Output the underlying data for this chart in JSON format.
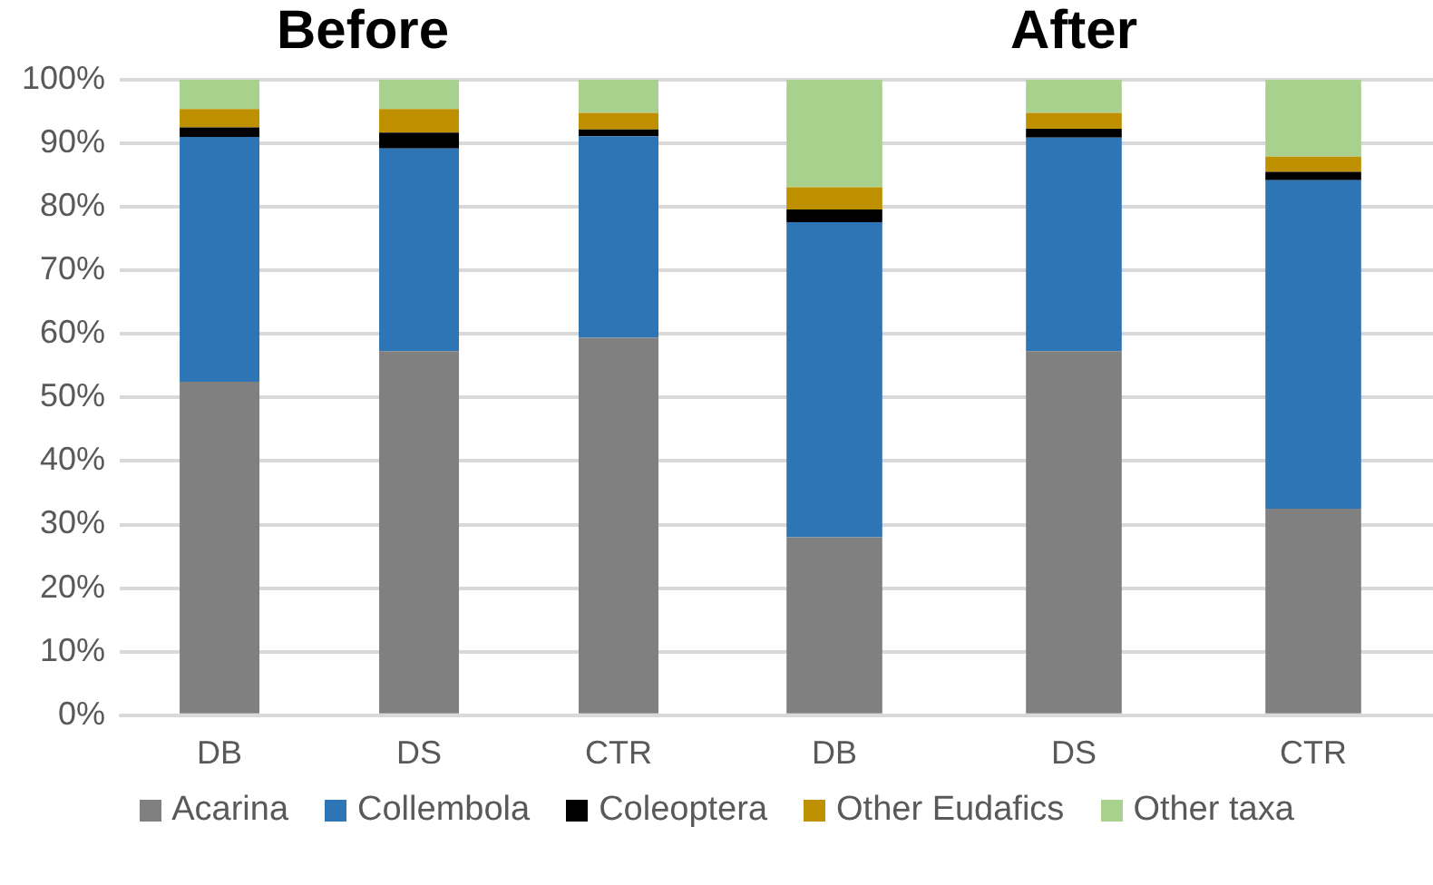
{
  "chart_data": [
    {
      "type": "bar",
      "title": "Before",
      "categories": [
        "DB",
        "DS",
        "CTR"
      ],
      "stacked": true,
      "ylim": [
        0,
        100
      ],
      "yticks": [
        {
          "value": 0,
          "label": "0%"
        },
        {
          "value": 10,
          "label": "10%"
        },
        {
          "value": 20,
          "label": "20%"
        },
        {
          "value": 30,
          "label": "30%"
        },
        {
          "value": 40,
          "label": "40%"
        },
        {
          "value": 50,
          "label": "50%"
        },
        {
          "value": 60,
          "label": "60%"
        },
        {
          "value": 70,
          "label": "70%"
        },
        {
          "value": 80,
          "label": "80%"
        },
        {
          "value": 90,
          "label": "90%"
        },
        {
          "value": 100,
          "label": "100%"
        }
      ],
      "grid": "y",
      "legend": "bottom",
      "series": [
        {
          "name": "Acarina",
          "color": "#808080",
          "values": [
            52.5,
            57.3,
            59.4
          ]
        },
        {
          "name": "Collembola",
          "color": "#2e75b6",
          "values": [
            38.5,
            31.9,
            31.7
          ]
        },
        {
          "name": "Coleoptera",
          "color": "#000000",
          "values": [
            1.5,
            2.5,
            1.1
          ]
        },
        {
          "name": "Other Eudafics",
          "color": "#bf9000",
          "values": [
            2.9,
            3.7,
            2.6
          ]
        },
        {
          "name": "Other taxa",
          "color": "#a9d18e",
          "values": [
            4.6,
            4.6,
            5.2
          ]
        }
      ]
    },
    {
      "type": "bar",
      "title": "After",
      "categories": [
        "DB",
        "DS",
        "CTR"
      ],
      "stacked": true,
      "ylim": [
        0,
        100
      ],
      "yticks": [
        0,
        10,
        20,
        30,
        40,
        50,
        60,
        70,
        80,
        90,
        100
      ],
      "grid": "y",
      "legend": "bottom",
      "tick_labels": "x",
      "series": [
        {
          "name": "Acarina",
          "color": "#808080",
          "values": [
            28.0,
            57.3,
            32.5
          ]
        },
        {
          "name": "Collembola",
          "color": "#2e75b6",
          "values": [
            49.6,
            33.6,
            51.7
          ]
        },
        {
          "name": "Coleoptera",
          "color": "#000000",
          "values": [
            2.0,
            1.4,
            1.3
          ]
        },
        {
          "name": "Other Eudafics",
          "color": "#bf9000",
          "values": [
            3.5,
            2.5,
            2.4
          ]
        },
        {
          "name": "Other taxa",
          "color": "#a9d18e",
          "values": [
            16.9,
            5.2,
            12.1
          ]
        }
      ]
    }
  ]
}
